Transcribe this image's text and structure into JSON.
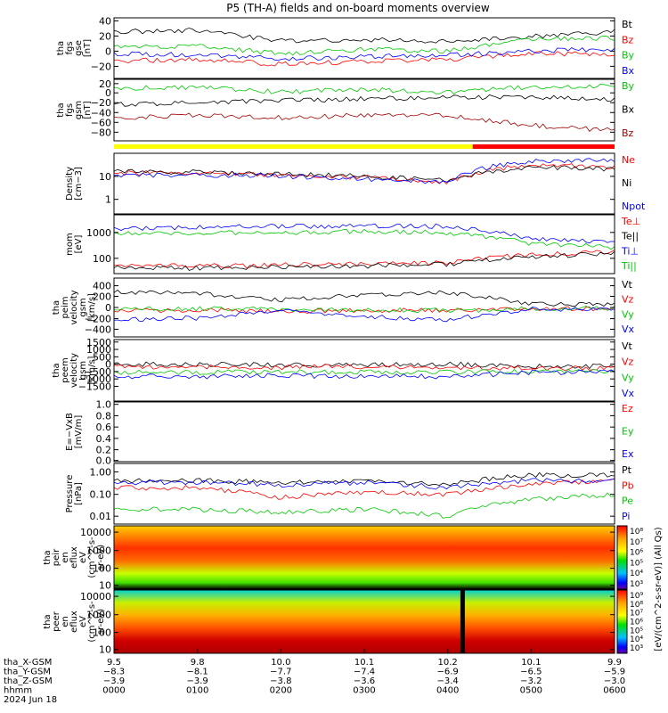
{
  "title": "P5 (TH-A) fields and on-board moments overview",
  "panels": [
    {
      "id": "fgs_gse",
      "ylabel": [
        "tha",
        "fgs",
        "gse",
        "[nT]"
      ],
      "ticks": [
        "40",
        "20",
        "0",
        "−20"
      ],
      "log": false,
      "legend": [
        {
          "text": "Bt",
          "color": "#000000"
        },
        {
          "text": "Bz",
          "color": "#ff0000"
        },
        {
          "text": "By",
          "color": "#00c800"
        },
        {
          "text": "Bx",
          "color": "#0000ff"
        }
      ]
    },
    {
      "id": "fgs_gsm",
      "ylabel": [
        "tha",
        "fgs",
        "gsm",
        "[nT]"
      ],
      "ticks": [
        "20",
        "0",
        "−20",
        "−40",
        "−60",
        "−80"
      ],
      "log": false,
      "legend": [
        {
          "text": "By",
          "color": "#00c800"
        },
        {
          "text": "Bx",
          "color": "#000000"
        },
        {
          "text": "Bz",
          "color": "#a00000"
        }
      ]
    },
    {
      "id": "density",
      "ylabel": [
        "Density",
        "[cm−3]"
      ],
      "ticks": [
        "10",
        "1"
      ],
      "log": true,
      "legend": [
        {
          "text": "Ne",
          "color": "#ff0000"
        },
        {
          "text": "Ni",
          "color": "#000000"
        },
        {
          "text": "Npot",
          "color": "#0000ff"
        }
      ]
    },
    {
      "id": "temperature",
      "ylabel": [
        "mom",
        "[eV]"
      ],
      "ticks": [
        "1000",
        "100"
      ],
      "log": true,
      "legend": [
        {
          "text": "Te⊥",
          "color": "#ff0000"
        },
        {
          "text": "Te||",
          "color": "#000000"
        },
        {
          "text": "Ti⊥",
          "color": "#0000ff"
        },
        {
          "text": "Ti||",
          "color": "#00c800"
        }
      ]
    },
    {
      "id": "peim_velocity",
      "ylabel": [
        "tha",
        "peim",
        "velocity",
        "gsm",
        "[km/s]"
      ],
      "ticks": [
        "400",
        "200",
        "0",
        "−200",
        "−400"
      ],
      "log": false,
      "legend": [
        {
          "text": "Vt",
          "color": "#000000"
        },
        {
          "text": "Vz",
          "color": "#ff0000"
        },
        {
          "text": "Vy",
          "color": "#00c800"
        },
        {
          "text": "Vx",
          "color": "#0000ff"
        }
      ]
    },
    {
      "id": "peem_velocity",
      "ylabel": [
        "tha",
        "peem",
        "velocity",
        "gsm",
        "[km/s]"
      ],
      "ticks": [
        "1500",
        "1000",
        "500",
        "0",
        "−500",
        "−1000",
        "−1500"
      ],
      "log": false,
      "legend": [
        {
          "text": "Vt",
          "color": "#000000"
        },
        {
          "text": "Vz",
          "color": "#ff0000"
        },
        {
          "text": "Vy",
          "color": "#00c800"
        },
        {
          "text": "Vx",
          "color": "#0000ff"
        }
      ]
    },
    {
      "id": "efield",
      "ylabel": [
        "E=−VxB",
        "[mV/m]"
      ],
      "ticks": [
        "1.0",
        "0.8",
        "0.6",
        "0.4",
        "0.2",
        "0.0"
      ],
      "log": false,
      "legend": [
        {
          "text": "Ez",
          "color": "#ff0000"
        },
        {
          "text": "Ey",
          "color": "#00c800"
        },
        {
          "text": "Ex",
          "color": "#0000ff"
        }
      ]
    },
    {
      "id": "pressure",
      "ylabel": [
        "Pressure",
        "[nPa]"
      ],
      "ticks": [
        "1.00",
        "0.10",
        "0.01"
      ],
      "log": true,
      "legend": [
        {
          "text": "Pt",
          "color": "#000000"
        },
        {
          "text": "Pb",
          "color": "#ff0000"
        },
        {
          "text": "Pe",
          "color": "#00c800"
        },
        {
          "text": "Pi",
          "color": "#0000ff"
        }
      ]
    },
    {
      "id": "peir_spec",
      "ylabel": [
        "tha",
        "peir",
        "en",
        "eflux",
        "eV",
        "(cm^2-s-",
        "sr-eV)"
      ],
      "ticks": [
        "10000",
        "1000",
        "100",
        "10"
      ],
      "log": true
    },
    {
      "id": "peer_spec",
      "ylabel": [
        "tha",
        "peer",
        "en",
        "eflux",
        "eV",
        "(cm^2-s-",
        "sr-eV)"
      ],
      "ticks": [
        "10000",
        "1000",
        "100",
        "10"
      ],
      "log": true
    }
  ],
  "colorbar": {
    "label": "[eV/(cm^2-s-sr-eV)] (All Qs)",
    "top_ticks": [
      "10⁸",
      "10⁷",
      "10⁶",
      "10⁵",
      "10⁴",
      "10³"
    ],
    "bottom_ticks": [
      "10⁹",
      "10⁸",
      "10⁷",
      "10⁶",
      "10⁵",
      "10⁴",
      "10³"
    ]
  },
  "xaxis": {
    "rows": [
      {
        "label": "tha_X-GSM",
        "values": [
          "9.5",
          "9.8",
          "10.0",
          "10.1",
          "10.2",
          "10.1",
          "9.9"
        ]
      },
      {
        "label": "tha_Y-GSM",
        "values": [
          "−8.3",
          "−8.1",
          "−7.7",
          "−7.4",
          "−6.9",
          "−6.5",
          "−5.9"
        ]
      },
      {
        "label": "tha_Z-GSM",
        "values": [
          "−3.9",
          "−3.9",
          "−3.8",
          "−3.6",
          "−3.4",
          "−3.2",
          "−3.0"
        ]
      },
      {
        "label": "hhmm",
        "values": [
          "0000",
          "0100",
          "0200",
          "0300",
          "0400",
          "0500",
          "0600"
        ]
      }
    ],
    "date": "2024 Jun 18"
  },
  "chart_data": {
    "type": "line",
    "title": "P5 (TH-A) fields and on-board moments overview",
    "x": [
      "0000",
      "0100",
      "0200",
      "0300",
      "0400",
      "0500",
      "0600"
    ],
    "xlabel": "hhmm",
    "mode_bar": [
      {
        "from": "0000",
        "to": "0418",
        "color": "#ffff00"
      },
      {
        "from": "0418",
        "to": "0600",
        "color": "#ff0000"
      }
    ],
    "panels": [
      {
        "ylabel": "tha fgs gse [nT]",
        "ylim": [
          -30,
          48
        ],
        "series": [
          {
            "name": "Bt",
            "values": [
              30,
              32,
              18,
              20,
              18,
              24,
              30
            ]
          },
          {
            "name": "Bz",
            "values": [
              -8,
              -5,
              -12,
              -8,
              -6,
              3,
              0
            ]
          },
          {
            "name": "By",
            "values": [
              10,
              12,
              2,
              8,
              5,
              20,
              22
            ]
          },
          {
            "name": "Bx",
            "values": [
              2,
              0,
              -5,
              -2,
              0,
              5,
              8
            ]
          }
        ]
      },
      {
        "ylabel": "tha fgs gsm [nT]",
        "ylim": [
          -90,
          30
        ],
        "series": [
          {
            "name": "By",
            "values": [
              12,
              15,
              5,
              10,
              5,
              15,
              18
            ]
          },
          {
            "name": "Bx",
            "values": [
              -20,
              -15,
              -12,
              -8,
              -5,
              -5,
              -10
            ]
          },
          {
            "name": "Bz",
            "values": [
              -45,
              -40,
              -45,
              -40,
              -40,
              -60,
              -70
            ]
          }
        ]
      },
      {
        "ylabel": "Density [cm-3]",
        "ylim": [
          0.3,
          70
        ],
        "series": [
          {
            "name": "Ne",
            "values": [
              12,
              12,
              10,
              8,
              5,
              25,
              20
            ]
          },
          {
            "name": "Ni",
            "values": [
              14,
              13,
              11,
              9,
              6,
              20,
              17
            ]
          },
          {
            "name": "Npot",
            "values": [
              10,
              10,
              9,
              7,
              5,
              35,
              40
            ]
          }
        ]
      },
      {
        "ylabel": "mom [eV]",
        "ylim": [
          40,
          3000
        ],
        "series": [
          {
            "name": "Te⊥",
            "values": [
              70,
              70,
              75,
              80,
              90,
              160,
              200
            ]
          },
          {
            "name": "Te||",
            "values": [
              60,
              60,
              65,
              70,
              80,
              140,
              170
            ]
          },
          {
            "name": "Ti⊥",
            "values": [
              1100,
              1200,
              1300,
              1300,
              1300,
              500,
              400
            ]
          },
          {
            "name": "Ti||",
            "values": [
              800,
              800,
              800,
              900,
              800,
              350,
              280
            ]
          }
        ]
      },
      {
        "ylabel": "tha peim velocity gsm [km/s]",
        "ylim": [
          -480,
          480
        ],
        "series": [
          {
            "name": "Vt",
            "values": [
              250,
              230,
              120,
              200,
              250,
              60,
              40
            ]
          },
          {
            "name": "Vz",
            "values": [
              -50,
              -40,
              -60,
              -50,
              -40,
              -20,
              -20
            ]
          },
          {
            "name": "Vy",
            "values": [
              -30,
              -20,
              -30,
              -40,
              -50,
              -20,
              -10
            ]
          },
          {
            "name": "Vx",
            "values": [
              -200,
              -170,
              -60,
              -150,
              -200,
              -30,
              -20
            ]
          }
        ]
      },
      {
        "ylabel": "tha peem velocity gsm [km/s]",
        "ylim": [
          -1500,
          1500
        ],
        "series": [
          {
            "name": "Vt",
            "values": [
              300,
              300,
              250,
              280,
              300,
              200,
              200
            ]
          },
          {
            "name": "Vz",
            "values": [
              200,
              150,
              150,
              180,
              150,
              100,
              100
            ]
          },
          {
            "name": "Vy",
            "values": [
              -100,
              -100,
              -80,
              -100,
              -100,
              -50,
              -50
            ]
          },
          {
            "name": "Vx",
            "values": [
              -300,
              -300,
              -250,
              -300,
              -300,
              -100,
              -100
            ]
          }
        ]
      },
      {
        "ylabel": "E=-VxB [mV/m]",
        "ylim": [
          0,
          1.0
        ],
        "series": [
          {
            "name": "Ez",
            "values": []
          },
          {
            "name": "Ey",
            "values": []
          },
          {
            "name": "Ex",
            "values": []
          }
        ]
      },
      {
        "ylabel": "Pressure [nPa]",
        "ylim": [
          0.005,
          1.5
        ],
        "series": [
          {
            "name": "Pt",
            "values": [
              0.3,
              0.3,
              0.25,
              0.3,
              0.2,
              0.5,
              0.5
            ]
          },
          {
            "name": "Pb",
            "values": [
              0.15,
              0.15,
              0.06,
              0.1,
              0.08,
              0.2,
              0.3
            ]
          },
          {
            "name": "Pe",
            "values": [
              0.02,
              0.02,
              0.015,
              0.02,
              0.01,
              0.05,
              0.08
            ]
          },
          {
            "name": "Pi",
            "values": [
              0.25,
              0.25,
              0.2,
              0.25,
              0.15,
              0.3,
              0.3
            ]
          }
        ]
      }
    ],
    "spectrograms": [
      {
        "ylabel": "tha peir en eflux",
        "ylim": [
          5,
          20000
        ],
        "zlim": [
          "10³",
          "10⁸"
        ]
      },
      {
        "ylabel": "tha peer en eflux",
        "ylim": [
          5,
          20000
        ],
        "zlim": [
          "10³",
          "10⁹"
        ]
      }
    ]
  }
}
